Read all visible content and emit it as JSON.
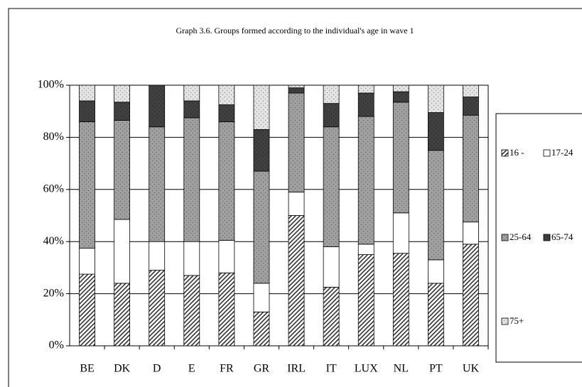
{
  "chart_data": {
    "type": "stacked_bar",
    "title": "Graph 3.6. Groups formed according to the individual's age in wave 1",
    "categories": [
      "BE",
      "DK",
      "D",
      "E",
      "FR",
      "GR",
      "IRL",
      "IT",
      "LUX",
      "NL",
      "PT",
      "UK"
    ],
    "series": [
      {
        "name": "16 -",
        "color": "#333333",
        "pattern": "hatch",
        "values": [
          27.5,
          24,
          29,
          27,
          28,
          13,
          50,
          22.5,
          35,
          35.5,
          24,
          39
        ]
      },
      {
        "name": "17-24",
        "color": "#ffffff",
        "pattern": "solid",
        "values": [
          10,
          24.5,
          11,
          13,
          12.5,
          11,
          9,
          15.5,
          4,
          15.5,
          9,
          8.5
        ]
      },
      {
        "name": "25-64",
        "color": "#a0a0a0",
        "pattern": "dots",
        "values": [
          48.5,
          38,
          44,
          47.5,
          45.5,
          43,
          38,
          46,
          49,
          42.5,
          42,
          41
        ]
      },
      {
        "name": "65-74",
        "color": "#404040",
        "pattern": "dots",
        "values": [
          8,
          7,
          16,
          6.5,
          6.5,
          16,
          2,
          9,
          9,
          4,
          14.5,
          7
        ]
      },
      {
        "name": "75+",
        "color": "#e4e4e4",
        "pattern": "dots",
        "values": [
          6,
          6.5,
          0,
          6,
          7.5,
          17,
          1,
          7,
          3,
          2.5,
          10.5,
          4.5
        ]
      }
    ],
    "ylim": [
      0,
      100
    ],
    "yticks": [
      {
        "value": 0,
        "label": "0%"
      },
      {
        "value": 20,
        "label": "20%"
      },
      {
        "value": 40,
        "label": "40%"
      },
      {
        "value": 60,
        "label": "60%"
      },
      {
        "value": 80,
        "label": "80%"
      },
      {
        "value": 100,
        "label": "100%"
      }
    ],
    "grid": true,
    "legend": "right"
  }
}
